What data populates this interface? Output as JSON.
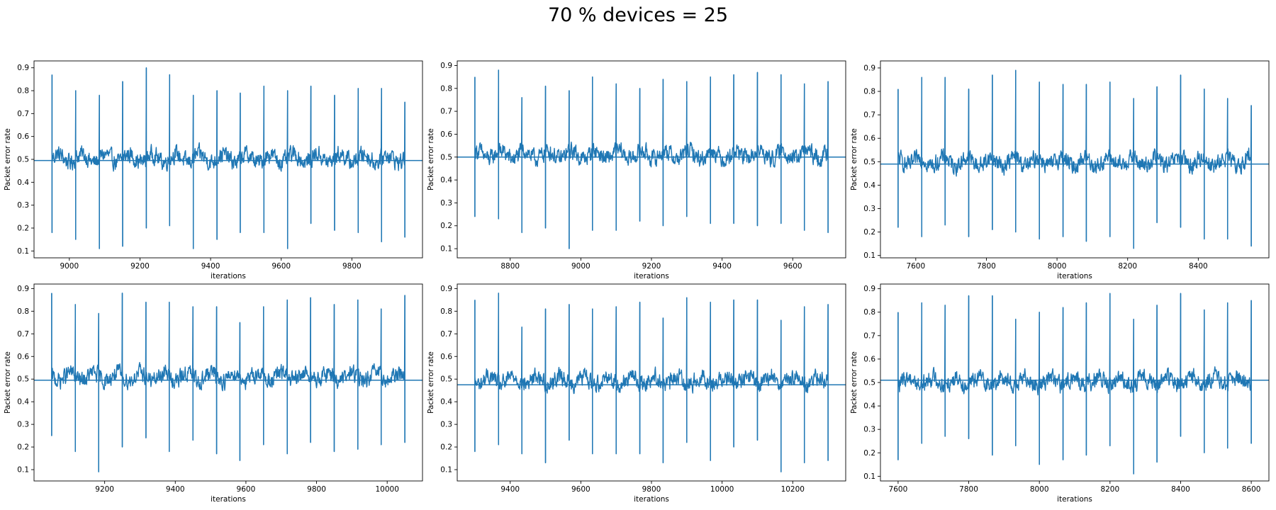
{
  "figure": {
    "title": "70 % devices = 25"
  },
  "chart_data": [
    {
      "type": "line",
      "title": "",
      "xlabel": "iterations",
      "ylabel": "Packet error rate",
      "xlim": [
        8900,
        10000
      ],
      "ylim": [
        0.07,
        0.93
      ],
      "xticks": [
        9000,
        9200,
        9400,
        9600,
        9800
      ],
      "yticks": [
        0.1,
        0.2,
        0.3,
        0.4,
        0.5,
        0.6,
        0.7,
        0.8,
        0.9
      ],
      "grid": false,
      "legend": "none",
      "baseline": 0.495,
      "color": "#1f77b4",
      "series": [
        {
          "x_start": 8951,
          "x_end": 9950,
          "base": 0.505,
          "noise": 0.035,
          "period": 66.6,
          "spikes": [
            {
              "x": 8951,
              "high": 0.87,
              "low": 0.18
            },
            {
              "x": 9018,
              "high": 0.8,
              "low": 0.15
            },
            {
              "x": 9085,
              "high": 0.78,
              "low": 0.11
            },
            {
              "x": 9151,
              "high": 0.84,
              "low": 0.12
            },
            {
              "x": 9218,
              "high": 0.9,
              "low": 0.2
            },
            {
              "x": 9284,
              "high": 0.87,
              "low": 0.21
            },
            {
              "x": 9351,
              "high": 0.78,
              "low": 0.11
            },
            {
              "x": 9418,
              "high": 0.8,
              "low": 0.15
            },
            {
              "x": 9484,
              "high": 0.79,
              "low": 0.18
            },
            {
              "x": 9551,
              "high": 0.82,
              "low": 0.18
            },
            {
              "x": 9618,
              "high": 0.8,
              "low": 0.11
            },
            {
              "x": 9684,
              "high": 0.82,
              "low": 0.22
            },
            {
              "x": 9751,
              "high": 0.78,
              "low": 0.19
            },
            {
              "x": 9818,
              "high": 0.81,
              "low": 0.18
            },
            {
              "x": 9884,
              "high": 0.81,
              "low": 0.14
            },
            {
              "x": 9950,
              "high": 0.75,
              "low": 0.16
            }
          ]
        }
      ]
    },
    {
      "type": "line",
      "title": "",
      "xlabel": "iterations",
      "ylabel": "Packet error rate",
      "xlim": [
        8650,
        9750
      ],
      "ylim": [
        0.06,
        0.92
      ],
      "xticks": [
        8800,
        9000,
        9200,
        9400,
        9600
      ],
      "yticks": [
        0.1,
        0.2,
        0.3,
        0.4,
        0.5,
        0.6,
        0.7,
        0.8,
        0.9
      ],
      "grid": false,
      "legend": "none",
      "baseline": 0.5,
      "color": "#1f77b4",
      "series": [
        {
          "x_start": 8700,
          "x_end": 9700,
          "base": 0.51,
          "noise": 0.035,
          "period": 66.6,
          "spikes": [
            {
              "x": 8700,
              "high": 0.85,
              "low": 0.24
            },
            {
              "x": 8767,
              "high": 0.88,
              "low": 0.23
            },
            {
              "x": 8833,
              "high": 0.76,
              "low": 0.17
            },
            {
              "x": 8900,
              "high": 0.81,
              "low": 0.19
            },
            {
              "x": 8967,
              "high": 0.79,
              "low": 0.1
            },
            {
              "x": 9033,
              "high": 0.85,
              "low": 0.18
            },
            {
              "x": 9100,
              "high": 0.82,
              "low": 0.18
            },
            {
              "x": 9167,
              "high": 0.8,
              "low": 0.22
            },
            {
              "x": 9233,
              "high": 0.84,
              "low": 0.2
            },
            {
              "x": 9300,
              "high": 0.83,
              "low": 0.24
            },
            {
              "x": 9367,
              "high": 0.85,
              "low": 0.21
            },
            {
              "x": 9433,
              "high": 0.86,
              "low": 0.21
            },
            {
              "x": 9500,
              "high": 0.87,
              "low": 0.2
            },
            {
              "x": 9567,
              "high": 0.86,
              "low": 0.21
            },
            {
              "x": 9633,
              "high": 0.82,
              "low": 0.18
            },
            {
              "x": 9700,
              "high": 0.83,
              "low": 0.17
            }
          ]
        }
      ]
    },
    {
      "type": "line",
      "title": "",
      "xlabel": "iterations",
      "ylabel": "Packet error rate",
      "xlim": [
        7500,
        8600
      ],
      "ylim": [
        0.09,
        0.93
      ],
      "xticks": [
        7600,
        7800,
        8000,
        8200,
        8400
      ],
      "yticks": [
        0.1,
        0.2,
        0.3,
        0.4,
        0.5,
        0.6,
        0.7,
        0.8,
        0.9
      ],
      "grid": false,
      "legend": "none",
      "baseline": 0.49,
      "color": "#1f77b4",
      "series": [
        {
          "x_start": 7550,
          "x_end": 8550,
          "base": 0.5,
          "noise": 0.035,
          "period": 66.6,
          "spikes": [
            {
              "x": 7550,
              "high": 0.81,
              "low": 0.22
            },
            {
              "x": 7617,
              "high": 0.86,
              "low": 0.18
            },
            {
              "x": 7683,
              "high": 0.86,
              "low": 0.23
            },
            {
              "x": 7750,
              "high": 0.81,
              "low": 0.18
            },
            {
              "x": 7817,
              "high": 0.87,
              "low": 0.21
            },
            {
              "x": 7883,
              "high": 0.89,
              "low": 0.2
            },
            {
              "x": 7950,
              "high": 0.84,
              "low": 0.17
            },
            {
              "x": 8017,
              "high": 0.83,
              "low": 0.18
            },
            {
              "x": 8083,
              "high": 0.83,
              "low": 0.16
            },
            {
              "x": 8150,
              "high": 0.84,
              "low": 0.18
            },
            {
              "x": 8217,
              "high": 0.77,
              "low": 0.13
            },
            {
              "x": 8283,
              "high": 0.82,
              "low": 0.24
            },
            {
              "x": 8350,
              "high": 0.87,
              "low": 0.22
            },
            {
              "x": 8417,
              "high": 0.81,
              "low": 0.17
            },
            {
              "x": 8483,
              "high": 0.77,
              "low": 0.17
            },
            {
              "x": 8550,
              "high": 0.74,
              "low": 0.14
            }
          ]
        }
      ]
    },
    {
      "type": "line",
      "title": "",
      "xlabel": "iterations",
      "ylabel": "Packet error rate",
      "xlim": [
        9000,
        10100
      ],
      "ylim": [
        0.05,
        0.92
      ],
      "xticks": [
        9200,
        9400,
        9600,
        9800,
        10000
      ],
      "yticks": [
        0.1,
        0.2,
        0.3,
        0.4,
        0.5,
        0.6,
        0.7,
        0.8,
        0.9
      ],
      "grid": false,
      "legend": "none",
      "baseline": 0.495,
      "color": "#1f77b4",
      "series": [
        {
          "x_start": 9050,
          "x_end": 10050,
          "base": 0.51,
          "noise": 0.035,
          "period": 66.6,
          "spikes": [
            {
              "x": 9050,
              "high": 0.88,
              "low": 0.25
            },
            {
              "x": 9117,
              "high": 0.83,
              "low": 0.18
            },
            {
              "x": 9183,
              "high": 0.79,
              "low": 0.09
            },
            {
              "x": 9250,
              "high": 0.88,
              "low": 0.2
            },
            {
              "x": 9317,
              "high": 0.84,
              "low": 0.24
            },
            {
              "x": 9383,
              "high": 0.84,
              "low": 0.18
            },
            {
              "x": 9450,
              "high": 0.82,
              "low": 0.23
            },
            {
              "x": 9517,
              "high": 0.82,
              "low": 0.17
            },
            {
              "x": 9583,
              "high": 0.75,
              "low": 0.14
            },
            {
              "x": 9650,
              "high": 0.82,
              "low": 0.21
            },
            {
              "x": 9717,
              "high": 0.85,
              "low": 0.17
            },
            {
              "x": 9783,
              "high": 0.86,
              "low": 0.22
            },
            {
              "x": 9850,
              "high": 0.83,
              "low": 0.18
            },
            {
              "x": 9917,
              "high": 0.85,
              "low": 0.19
            },
            {
              "x": 9983,
              "high": 0.81,
              "low": 0.21
            },
            {
              "x": 10050,
              "high": 0.87,
              "low": 0.22
            }
          ]
        }
      ]
    },
    {
      "type": "line",
      "title": "",
      "xlabel": "iterations",
      "ylabel": "Packet error rate",
      "xlim": [
        9250,
        10350
      ],
      "ylim": [
        0.05,
        0.92
      ],
      "xticks": [
        9400,
        9600,
        9800,
        10000,
        10200
      ],
      "yticks": [
        0.1,
        0.2,
        0.3,
        0.4,
        0.5,
        0.6,
        0.7,
        0.8,
        0.9
      ],
      "grid": false,
      "legend": "none",
      "baseline": 0.475,
      "color": "#1f77b4",
      "series": [
        {
          "x_start": 9300,
          "x_end": 10300,
          "base": 0.495,
          "noise": 0.035,
          "period": 66.6,
          "spikes": [
            {
              "x": 9300,
              "high": 0.85,
              "low": 0.18
            },
            {
              "x": 9367,
              "high": 0.88,
              "low": 0.21
            },
            {
              "x": 9433,
              "high": 0.73,
              "low": 0.17
            },
            {
              "x": 9500,
              "high": 0.81,
              "low": 0.13
            },
            {
              "x": 9567,
              "high": 0.83,
              "low": 0.23
            },
            {
              "x": 9633,
              "high": 0.81,
              "low": 0.17
            },
            {
              "x": 9700,
              "high": 0.82,
              "low": 0.17
            },
            {
              "x": 9767,
              "high": 0.84,
              "low": 0.17
            },
            {
              "x": 9833,
              "high": 0.77,
              "low": 0.13
            },
            {
              "x": 9900,
              "high": 0.86,
              "low": 0.22
            },
            {
              "x": 9967,
              "high": 0.84,
              "low": 0.14
            },
            {
              "x": 10033,
              "high": 0.85,
              "low": 0.2
            },
            {
              "x": 10100,
              "high": 0.85,
              "low": 0.23
            },
            {
              "x": 10167,
              "high": 0.76,
              "low": 0.09
            },
            {
              "x": 10233,
              "high": 0.82,
              "low": 0.13
            },
            {
              "x": 10300,
              "high": 0.83,
              "low": 0.14
            }
          ]
        }
      ]
    },
    {
      "type": "line",
      "title": "",
      "xlabel": "iterations",
      "ylabel": "Packet error rate",
      "xlim": [
        7550,
        8650
      ],
      "ylim": [
        0.08,
        0.92
      ],
      "xticks": [
        7600,
        7800,
        8000,
        8200,
        8400,
        8600
      ],
      "yticks": [
        0.1,
        0.2,
        0.3,
        0.4,
        0.5,
        0.6,
        0.7,
        0.8,
        0.9
      ],
      "grid": false,
      "legend": "none",
      "baseline": 0.51,
      "color": "#1f77b4",
      "series": [
        {
          "x_start": 7600,
          "x_end": 8600,
          "base": 0.505,
          "noise": 0.035,
          "period": 66.6,
          "spikes": [
            {
              "x": 7600,
              "high": 0.8,
              "low": 0.17
            },
            {
              "x": 7667,
              "high": 0.84,
              "low": 0.24
            },
            {
              "x": 7733,
              "high": 0.83,
              "low": 0.27
            },
            {
              "x": 7800,
              "high": 0.87,
              "low": 0.26
            },
            {
              "x": 7867,
              "high": 0.87,
              "low": 0.19
            },
            {
              "x": 7933,
              "high": 0.77,
              "low": 0.23
            },
            {
              "x": 8000,
              "high": 0.8,
              "low": 0.15
            },
            {
              "x": 8067,
              "high": 0.82,
              "low": 0.17
            },
            {
              "x": 8133,
              "high": 0.84,
              "low": 0.19
            },
            {
              "x": 8200,
              "high": 0.88,
              "low": 0.23
            },
            {
              "x": 8267,
              "high": 0.77,
              "low": 0.11
            },
            {
              "x": 8333,
              "high": 0.83,
              "low": 0.16
            },
            {
              "x": 8400,
              "high": 0.88,
              "low": 0.27
            },
            {
              "x": 8467,
              "high": 0.81,
              "low": 0.2
            },
            {
              "x": 8533,
              "high": 0.84,
              "low": 0.22
            },
            {
              "x": 8600,
              "high": 0.85,
              "low": 0.24
            }
          ]
        }
      ]
    }
  ]
}
